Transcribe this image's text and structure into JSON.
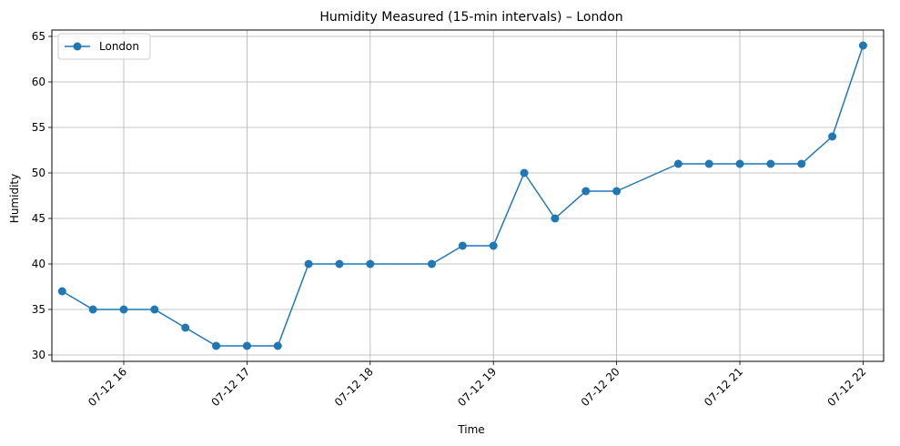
{
  "chart_data": {
    "type": "line",
    "title": "Humidity Measured (15-min intervals) – London",
    "xlabel": "Time",
    "ylabel": "Humidity",
    "x_tick_labels": [
      "07-12 16",
      "07-12 17",
      "07-12 18",
      "07-12 19",
      "07-12 20",
      "07-12 21",
      "07-12 22"
    ],
    "y_ticks": [
      30,
      35,
      40,
      45,
      50,
      55,
      60,
      65
    ],
    "ylim": [
      29.3,
      65.7
    ],
    "xlim": [
      "07-12 15:25",
      "07-12 22:10"
    ],
    "grid": true,
    "legend_position": "top-left",
    "series": [
      {
        "name": "London",
        "color": "#1f77b4",
        "marker": "circle",
        "x": [
          "07-12 15:30",
          "07-12 15:45",
          "07-12 16:00",
          "07-12 16:15",
          "07-12 16:30",
          "07-12 16:45",
          "07-12 17:00",
          "07-12 17:15",
          "07-12 17:30",
          "07-12 17:45",
          "07-12 18:00",
          "07-12 18:30",
          "07-12 18:45",
          "07-12 19:00",
          "07-12 19:15",
          "07-12 19:30",
          "07-12 19:45",
          "07-12 20:00",
          "07-12 20:30",
          "07-12 20:45",
          "07-12 21:00",
          "07-12 21:15",
          "07-12 21:30",
          "07-12 21:45",
          "07-12 22:00"
        ],
        "y": [
          37,
          35,
          35,
          35,
          33,
          31,
          31,
          31,
          40,
          40,
          40,
          40,
          42,
          42,
          50,
          45,
          48,
          48,
          51,
          51,
          51,
          51,
          51,
          54,
          64
        ]
      }
    ]
  }
}
